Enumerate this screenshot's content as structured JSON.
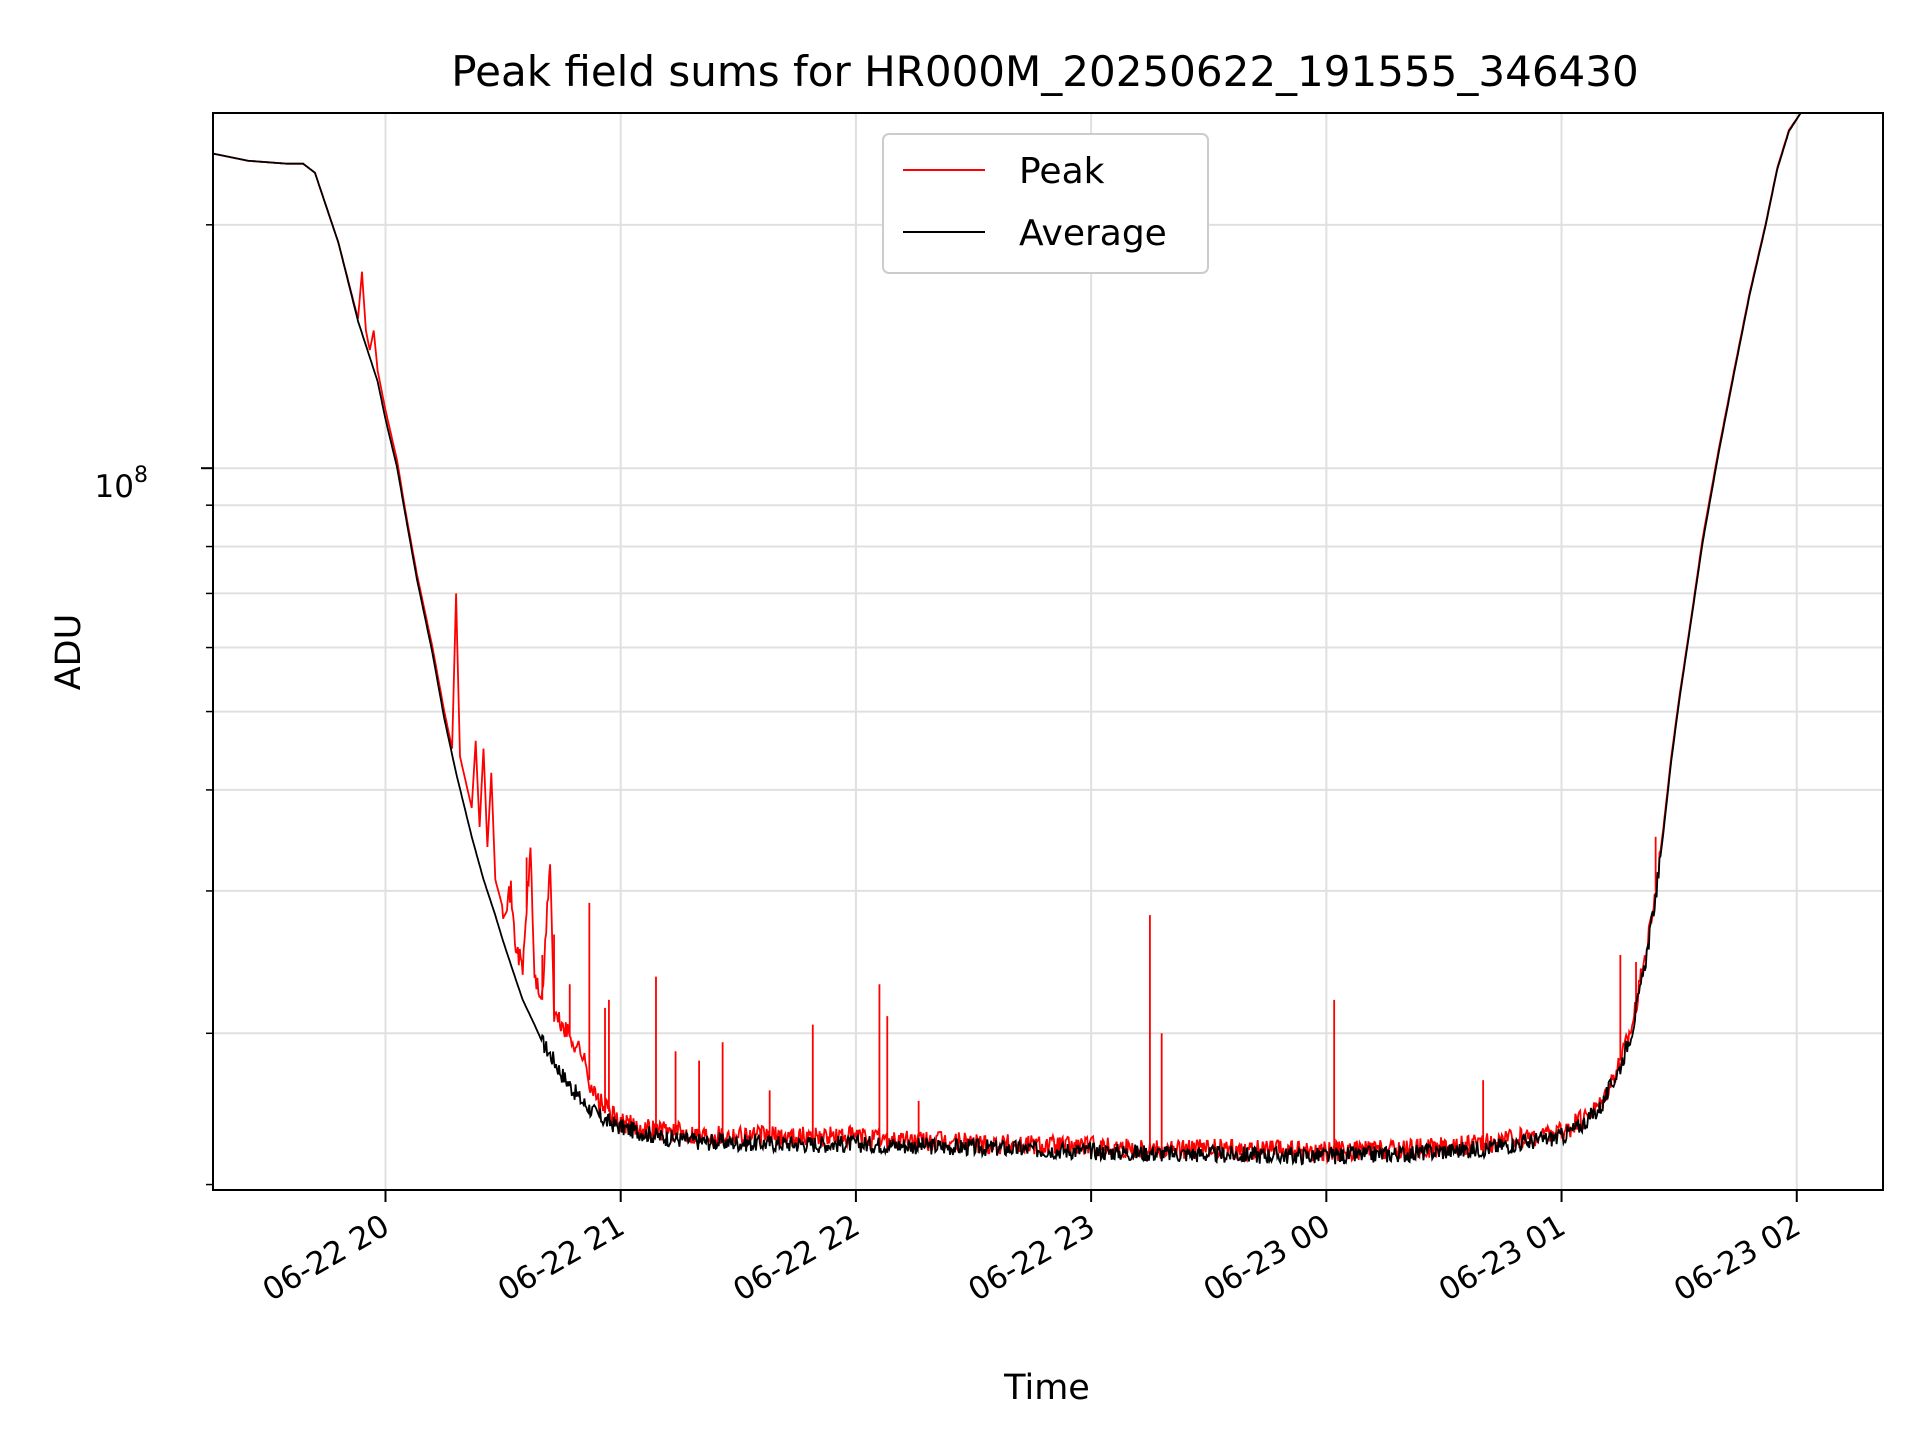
{
  "chart_data": {
    "type": "line",
    "title": "Peak field sums for HR000M_20250622_191555_346430",
    "xlabel": "Time",
    "ylabel": "ADU",
    "yscale": "log",
    "grid": true,
    "legend_position": "top-center",
    "x_ticks": [
      "06-22 20",
      "06-22 21",
      "06-22 22",
      "06-22 23",
      "06-23 00",
      "06-23 01",
      "06-23 02"
    ],
    "y_tick_label": {
      "base": "10",
      "exponent": "8"
    },
    "xlim": [
      "2025-06-22 19:16",
      "2025-06-23 02:22"
    ],
    "ylim": [
      12800000,
      275000000
    ],
    "colors": {
      "peak": "#ff0000",
      "average": "#000000",
      "grid": "#e0e0e0"
    },
    "series": [
      {
        "name": "Peak",
        "key": "peak",
        "points": [
          [
            "2025-06-22 19:16",
            245000000
          ],
          [
            "2025-06-22 19:25",
            240000000
          ],
          [
            "2025-06-22 19:35",
            238000000
          ],
          [
            "2025-06-22 19:39",
            238000000
          ],
          [
            "2025-06-22 19:42",
            232000000
          ],
          [
            "2025-06-22 19:48",
            190000000
          ],
          [
            "2025-06-22 19:53",
            153000000
          ],
          [
            "2025-06-22 19:54",
            175000000
          ],
          [
            "2025-06-22 19:55",
            148000000
          ],
          [
            "2025-06-22 19:56",
            140000000
          ],
          [
            "2025-06-22 19:57",
            148000000
          ],
          [
            "2025-06-22 19:58",
            132000000
          ],
          [
            "2025-06-22 20:00",
            118000000
          ],
          [
            "2025-06-22 20:03",
            102000000
          ],
          [
            "2025-06-22 20:05",
            89000000
          ],
          [
            "2025-06-22 20:08",
            74000000
          ],
          [
            "2025-06-22 20:12",
            60000000
          ],
          [
            "2025-06-22 20:15",
            50000000
          ],
          [
            "2025-06-22 20:17",
            45000000
          ],
          [
            "2025-06-22 20:18",
            70000000
          ],
          [
            "2025-06-22 20:19",
            44000000
          ],
          [
            "2025-06-22 20:22",
            38000000
          ],
          [
            "2025-06-22 20:23",
            46000000
          ],
          [
            "2025-06-22 20:24",
            36000000
          ],
          [
            "2025-06-22 20:25",
            45000000
          ],
          [
            "2025-06-22 20:26",
            34000000
          ],
          [
            "2025-06-22 20:27",
            42000000
          ],
          [
            "2025-06-22 20:28",
            31000000
          ],
          [
            "2025-06-22 20:30",
            28500000
          ],
          [
            "2025-06-22 20:32",
            30000000
          ],
          [
            "2025-06-22 20:33",
            26000000
          ],
          [
            "2025-06-22 20:35",
            24000000
          ],
          [
            "2025-06-22 20:37",
            34000000
          ],
          [
            "2025-06-22 20:38",
            23500000
          ],
          [
            "2025-06-22 20:40",
            22000000
          ],
          [
            "2025-06-22 20:42",
            33000000
          ],
          [
            "2025-06-22 20:43",
            21000000
          ],
          [
            "2025-06-22 20:45",
            20500000
          ],
          [
            "2025-06-22 20:48",
            19500000
          ],
          [
            "2025-06-22 20:50",
            19000000
          ],
          [
            "2025-06-22 20:52",
            17500000
          ],
          [
            "2025-06-22 20:54",
            16500000
          ],
          [
            "2025-06-22 20:56",
            16200000
          ],
          [
            "2025-06-22 20:58",
            15800000
          ],
          [
            "2025-06-22 21:00",
            15500000
          ],
          [
            "2025-06-22 21:05",
            15300000
          ],
          [
            "2025-06-22 21:10",
            15200000
          ],
          [
            "2025-06-22 21:15",
            15100000
          ],
          [
            "2025-06-22 21:20",
            15000000
          ],
          [
            "2025-06-22 21:25",
            15000000
          ],
          [
            "2025-06-22 21:30",
            15000000
          ],
          [
            "2025-06-22 21:40",
            14900000
          ],
          [
            "2025-06-22 21:50",
            14900000
          ],
          [
            "2025-06-22 22:00",
            14900000
          ],
          [
            "2025-06-22 22:05",
            14800000
          ],
          [
            "2025-06-22 22:20",
            14700000
          ],
          [
            "2025-06-22 22:40",
            14600000
          ],
          [
            "2025-06-22 23:00",
            14500000
          ],
          [
            "2025-06-22 23:20",
            14400000
          ],
          [
            "2025-06-22 23:40",
            14350000
          ],
          [
            "2025-06-23 00:00",
            14300000
          ],
          [
            "2025-06-23 00:20",
            14350000
          ],
          [
            "2025-06-23 00:40",
            14600000
          ],
          [
            "2025-06-23 01:00",
            15100000
          ],
          [
            "2025-06-23 01:05",
            15600000
          ],
          [
            "2025-06-23 01:10",
            16400000
          ],
          [
            "2025-06-23 01:15",
            18500000
          ],
          [
            "2025-06-23 01:18",
            20500000
          ],
          [
            "2025-06-23 01:20",
            23000000
          ],
          [
            "2025-06-23 01:22",
            26000000
          ],
          [
            "2025-06-23 01:24",
            30000000
          ],
          [
            "2025-06-23 01:26",
            36000000
          ],
          [
            "2025-06-23 01:28",
            44000000
          ],
          [
            "2025-06-23 01:30",
            52000000
          ],
          [
            "2025-06-23 01:33",
            65000000
          ],
          [
            "2025-06-23 01:36",
            82000000
          ],
          [
            "2025-06-23 01:40",
            105000000
          ],
          [
            "2025-06-23 01:44",
            132000000
          ],
          [
            "2025-06-23 01:48",
            165000000
          ],
          [
            "2025-06-23 01:52",
            200000000
          ],
          [
            "2025-06-23 01:55",
            235000000
          ],
          [
            "2025-06-23 01:58",
            262000000
          ],
          [
            "2025-06-23 02:01",
            275000000
          ],
          [
            "2025-06-23 02:22",
            275000000
          ]
        ],
        "spikes": [
          [
            "2025-06-22 20:36",
            33000000
          ],
          [
            "2025-06-22 20:40",
            25000000
          ],
          [
            "2025-06-22 20:43",
            26500000
          ],
          [
            "2025-06-22 20:47",
            23000000
          ],
          [
            "2025-06-22 20:52",
            29000000
          ],
          [
            "2025-06-22 20:56",
            21500000
          ],
          [
            "2025-06-22 20:57",
            22000000
          ],
          [
            "2025-06-22 21:09",
            23500000
          ],
          [
            "2025-06-22 21:14",
            19000000
          ],
          [
            "2025-06-22 21:20",
            18500000
          ],
          [
            "2025-06-22 21:26",
            19500000
          ],
          [
            "2025-06-22 21:38",
            17000000
          ],
          [
            "2025-06-22 21:49",
            20500000
          ],
          [
            "2025-06-22 22:06",
            23000000
          ],
          [
            "2025-06-22 22:08",
            21000000
          ],
          [
            "2025-06-22 22:16",
            16500000
          ],
          [
            "2025-06-22 23:15",
            28000000
          ],
          [
            "2025-06-22 23:18",
            20000000
          ],
          [
            "2025-06-23 00:02",
            22000000
          ],
          [
            "2025-06-23 00:40",
            17500000
          ],
          [
            "2025-06-23 01:15",
            25000000
          ],
          [
            "2025-06-23 01:19",
            24500000
          ],
          [
            "2025-06-23 01:24",
            35000000
          ]
        ]
      },
      {
        "name": "Average",
        "key": "average",
        "points": [
          [
            "2025-06-22 19:16",
            245000000
          ],
          [
            "2025-06-22 19:25",
            240000000
          ],
          [
            "2025-06-22 19:35",
            238000000
          ],
          [
            "2025-06-22 19:39",
            238000000
          ],
          [
            "2025-06-22 19:42",
            232000000
          ],
          [
            "2025-06-22 19:48",
            190000000
          ],
          [
            "2025-06-22 19:53",
            152000000
          ],
          [
            "2025-06-22 19:58",
            128000000
          ],
          [
            "2025-06-22 20:00",
            115000000
          ],
          [
            "2025-06-22 20:03",
            100000000
          ],
          [
            "2025-06-22 20:05",
            88000000
          ],
          [
            "2025-06-22 20:08",
            73000000
          ],
          [
            "2025-06-22 20:12",
            59000000
          ],
          [
            "2025-06-22 20:15",
            49000000
          ],
          [
            "2025-06-22 20:18",
            42000000
          ],
          [
            "2025-06-22 20:22",
            35000000
          ],
          [
            "2025-06-22 20:25",
            31000000
          ],
          [
            "2025-06-22 20:28",
            28000000
          ],
          [
            "2025-06-22 20:30",
            26000000
          ],
          [
            "2025-06-22 20:33",
            23500000
          ],
          [
            "2025-06-22 20:35",
            22000000
          ],
          [
            "2025-06-22 20:38",
            20500000
          ],
          [
            "2025-06-22 20:40",
            19500000
          ],
          [
            "2025-06-22 20:43",
            18500000
          ],
          [
            "2025-06-22 20:45",
            17800000
          ],
          [
            "2025-06-22 20:48",
            17000000
          ],
          [
            "2025-06-22 20:50",
            16500000
          ],
          [
            "2025-06-22 20:53",
            16000000
          ],
          [
            "2025-06-22 20:56",
            15600000
          ],
          [
            "2025-06-22 21:00",
            15300000
          ],
          [
            "2025-06-22 21:10",
            14900000
          ],
          [
            "2025-06-22 21:20",
            14700000
          ],
          [
            "2025-06-22 21:30",
            14650000
          ],
          [
            "2025-06-22 21:45",
            14600000
          ],
          [
            "2025-06-22 22:00",
            14600000
          ],
          [
            "2025-06-22 22:20",
            14500000
          ],
          [
            "2025-06-22 22:40",
            14400000
          ],
          [
            "2025-06-22 23:00",
            14300000
          ],
          [
            "2025-06-22 23:20",
            14200000
          ],
          [
            "2025-06-22 23:40",
            14150000
          ],
          [
            "2025-06-23 00:00",
            14100000
          ],
          [
            "2025-06-23 00:20",
            14200000
          ],
          [
            "2025-06-23 00:40",
            14400000
          ],
          [
            "2025-06-23 01:00",
            14900000
          ],
          [
            "2025-06-23 01:05",
            15400000
          ],
          [
            "2025-06-23 01:10",
            16200000
          ],
          [
            "2025-06-23 01:15",
            18200000
          ],
          [
            "2025-06-23 01:18",
            20200000
          ],
          [
            "2025-06-23 01:20",
            22500000
          ],
          [
            "2025-06-23 01:22",
            25500000
          ],
          [
            "2025-06-23 01:24",
            29500000
          ],
          [
            "2025-06-23 01:26",
            35500000
          ],
          [
            "2025-06-23 01:28",
            43500000
          ],
          [
            "2025-06-23 01:30",
            51500000
          ],
          [
            "2025-06-23 01:33",
            64500000
          ],
          [
            "2025-06-23 01:36",
            81000000
          ],
          [
            "2025-06-23 01:40",
            104000000
          ],
          [
            "2025-06-23 01:44",
            131000000
          ],
          [
            "2025-06-23 01:48",
            164000000
          ],
          [
            "2025-06-23 01:52",
            199000000
          ],
          [
            "2025-06-23 01:55",
            234000000
          ],
          [
            "2025-06-23 01:58",
            261000000
          ],
          [
            "2025-06-23 02:01",
            275000000
          ],
          [
            "2025-06-23 02:22",
            275000000
          ]
        ]
      }
    ]
  }
}
